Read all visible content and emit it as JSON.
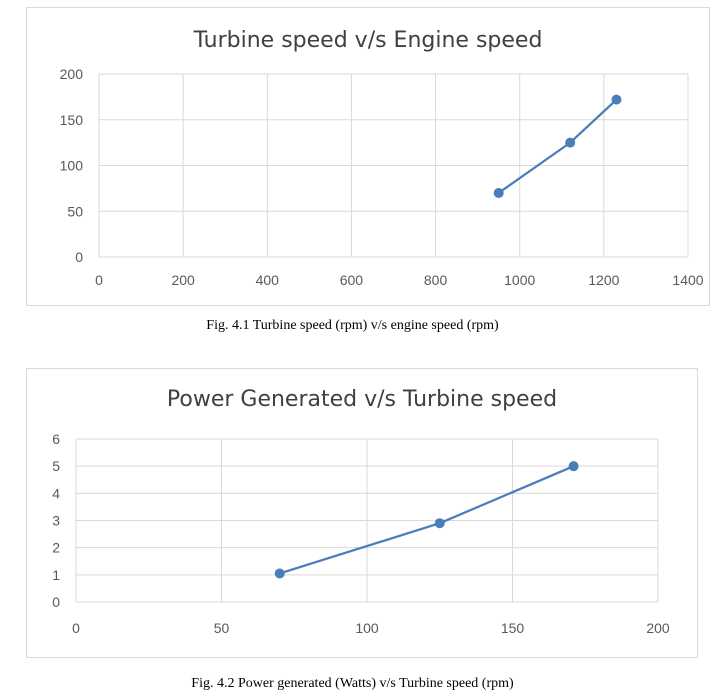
{
  "chart_data": [
    {
      "type": "scatter",
      "title": "Turbine speed v/s Engine speed",
      "xlabel": "",
      "ylabel": "",
      "xlim": [
        0,
        1400
      ],
      "ylim": [
        0,
        200
      ],
      "x_ticks": [
        "0",
        "200",
        "400",
        "600",
        "800",
        "1000",
        "1200",
        "1400"
      ],
      "y_ticks": [
        "0",
        "50",
        "100",
        "150",
        "200"
      ],
      "grid": true,
      "series": [
        {
          "x": [
            950,
            1120,
            1230
          ],
          "y": [
            70,
            125,
            172
          ],
          "color": "#4a7ebb"
        }
      ]
    },
    {
      "type": "scatter",
      "title": "Power Generated v/s Turbine speed",
      "xlabel": "",
      "ylabel": "",
      "xlim": [
        0,
        200
      ],
      "ylim": [
        0,
        6
      ],
      "x_ticks": [
        "0",
        "50",
        "100",
        "150",
        "200"
      ],
      "y_ticks": [
        "0",
        "1",
        "2",
        "3",
        "4",
        "5",
        "6"
      ],
      "grid": true,
      "series": [
        {
          "x": [
            70,
            125,
            171
          ],
          "y": [
            1.05,
            2.9,
            5.0
          ],
          "color": "#4a7ebb"
        }
      ]
    }
  ],
  "captions": {
    "fig1": "Fig. 4.1 Turbine speed (rpm) v/s engine speed (rpm)",
    "fig2": "Fig. 4.2 Power generated (Watts) v/s Turbine speed (rpm)"
  }
}
